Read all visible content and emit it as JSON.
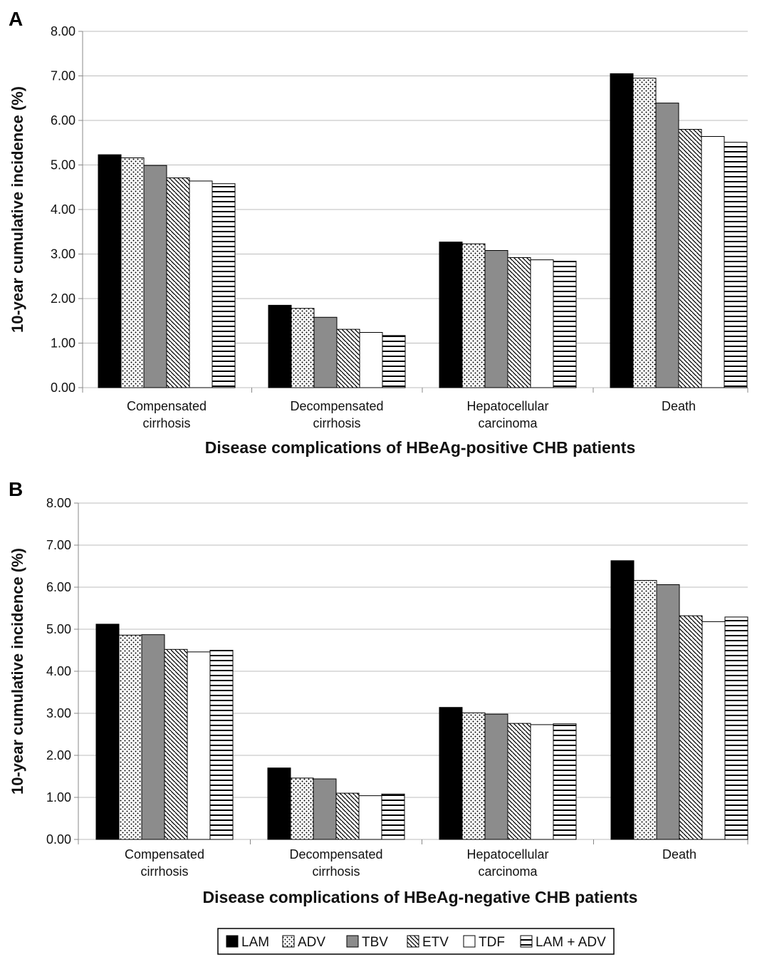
{
  "legend": [
    {
      "name": "LAM",
      "pattern": "solid-black"
    },
    {
      "name": "ADV",
      "pattern": "dots"
    },
    {
      "name": "TBV",
      "pattern": "solid-gray"
    },
    {
      "name": "ETV",
      "pattern": "diagonal-lines"
    },
    {
      "name": "TDF",
      "pattern": "white"
    },
    {
      "name": "LAM + ADV",
      "pattern": "horizontal-lines"
    }
  ],
  "colors": {
    "lam": "#000000",
    "tbv": "#8c8c8c",
    "grid": "#bdbdbd",
    "axis": "#888888"
  },
  "chart_data": [
    {
      "panel": "A",
      "type": "bar",
      "xlabel": "Disease complications of HBeAg-positive CHB patients",
      "ylabel": "10-year cumulative incidence (%)",
      "ylim": [
        0,
        8
      ],
      "yticks": [
        "0.00",
        "1.00",
        "2.00",
        "3.00",
        "4.00",
        "5.00",
        "6.00",
        "7.00",
        "8.00"
      ],
      "grid": true,
      "categories": [
        [
          "Compensated",
          "cirrhosis"
        ],
        [
          "Decompensated",
          "cirrhosis"
        ],
        [
          "Hepatocellular",
          "carcinoma"
        ],
        [
          "Death"
        ]
      ],
      "series": [
        {
          "name": "LAM",
          "values": [
            5.23,
            1.85,
            3.27,
            7.05
          ]
        },
        {
          "name": "ADV",
          "values": [
            5.16,
            1.78,
            3.23,
            6.95
          ]
        },
        {
          "name": "TBV",
          "values": [
            4.99,
            1.58,
            3.08,
            6.39
          ]
        },
        {
          "name": "ETV",
          "values": [
            4.71,
            1.31,
            2.92,
            5.8
          ]
        },
        {
          "name": "TDF",
          "values": [
            4.64,
            1.24,
            2.87,
            5.64
          ]
        },
        {
          "name": "LAM + ADV",
          "values": [
            4.58,
            1.17,
            2.84,
            5.51
          ]
        }
      ]
    },
    {
      "panel": "B",
      "type": "bar",
      "xlabel": "Disease complications of HBeAg-negative CHB patients",
      "ylabel": "10-year cumulative incidence (%)",
      "ylim": [
        0,
        8
      ],
      "yticks": [
        "0.00",
        "1.00",
        "2.00",
        "3.00",
        "4.00",
        "5.00",
        "6.00",
        "7.00",
        "8.00"
      ],
      "grid": true,
      "categories": [
        [
          "Compensated",
          "cirrhosis"
        ],
        [
          "Decompensated",
          "cirrhosis"
        ],
        [
          "Hepatocellular",
          "carcinoma"
        ],
        [
          "Death"
        ]
      ],
      "series": [
        {
          "name": "LAM",
          "values": [
            5.12,
            1.7,
            3.14,
            6.63
          ]
        },
        {
          "name": "ADV",
          "values": [
            4.86,
            1.46,
            3.01,
            6.16
          ]
        },
        {
          "name": "TBV",
          "values": [
            4.87,
            1.44,
            2.98,
            6.06
          ]
        },
        {
          "name": "ETV",
          "values": [
            4.52,
            1.1,
            2.76,
            5.32
          ]
        },
        {
          "name": "TDF",
          "values": [
            4.46,
            1.04,
            2.73,
            5.18
          ]
        },
        {
          "name": "LAM + ADV",
          "values": [
            4.5,
            1.08,
            2.75,
            5.29
          ]
        }
      ]
    }
  ]
}
